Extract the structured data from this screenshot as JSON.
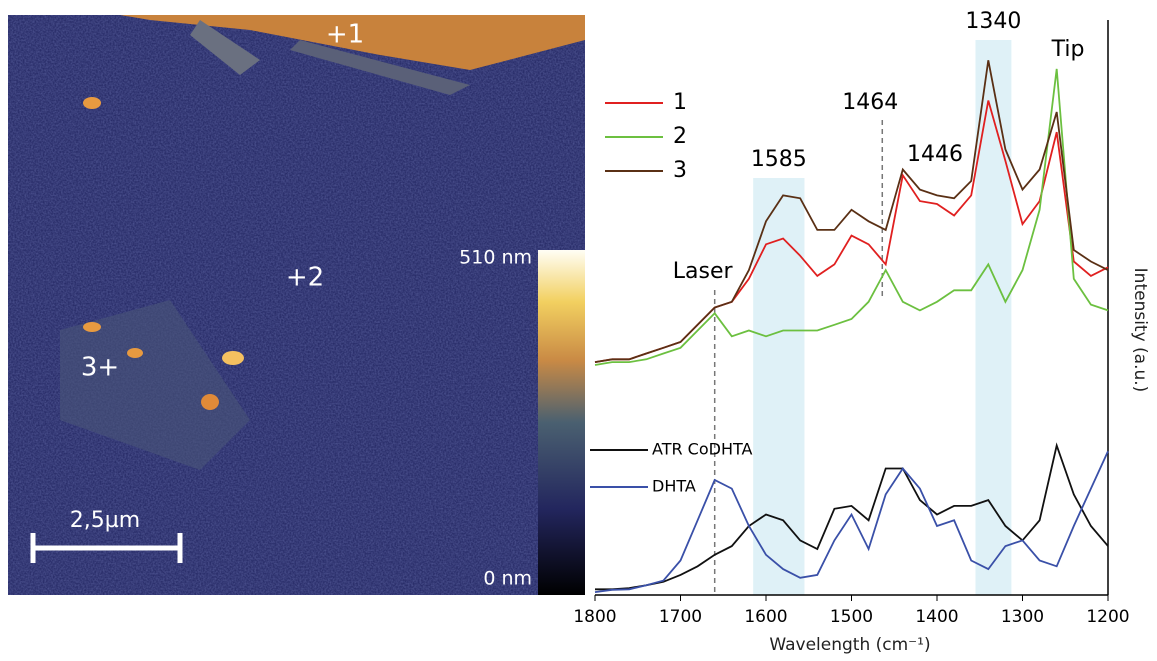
{
  "image": {
    "markers": [
      "+1",
      "+2",
      "3+"
    ],
    "scale_bar": "2,5µm",
    "colorbar": {
      "max_label": "510 nm",
      "min_label": "0 nm"
    }
  },
  "chart_data": {
    "type": "line",
    "xlabel": "Wavelength (cm⁻¹)",
    "ylabel": "Intensity (a.u.)",
    "x": [
      1800,
      1780,
      1760,
      1740,
      1720,
      1700,
      1680,
      1660,
      1640,
      1620,
      1600,
      1580,
      1560,
      1540,
      1520,
      1500,
      1480,
      1460,
      1440,
      1420,
      1400,
      1380,
      1360,
      1340,
      1320,
      1300,
      1280,
      1260,
      1240,
      1220,
      1200
    ],
    "xlim": [
      1800,
      1200
    ],
    "xticks": [
      1800,
      1700,
      1600,
      1500,
      1400,
      1300,
      1200
    ],
    "ylim": [
      0,
      100
    ],
    "series": [
      {
        "name": "1",
        "color": "#e02020",
        "values": [
          40.5,
          41,
          41,
          42,
          43,
          44,
          47,
          50,
          51,
          55,
          61,
          62,
          59,
          55.5,
          57.5,
          62.5,
          61,
          57.5,
          73,
          68.5,
          68,
          66,
          69.5,
          86,
          75.5,
          64.5,
          68.5,
          80.5,
          58,
          55.5,
          57
        ]
      },
      {
        "name": "2",
        "color": "#6cc040",
        "values": [
          40,
          40.5,
          40.5,
          41,
          42,
          43,
          46,
          49,
          45,
          46,
          45,
          46,
          46,
          46,
          47,
          48,
          51,
          56.5,
          51,
          49.5,
          51,
          53,
          53,
          57.5,
          51,
          56.5,
          67,
          91.5,
          55,
          50.5,
          49.5
        ]
      },
      {
        "name": "3",
        "color": "#5a3015",
        "values": [
          40.5,
          41,
          41,
          42,
          43,
          44,
          47,
          50,
          51,
          56.5,
          65,
          69.5,
          69,
          63.5,
          63.5,
          67,
          65,
          63.5,
          74,
          70.5,
          69.5,
          69,
          72,
          93,
          77.5,
          70.5,
          74,
          84,
          60,
          58,
          56.5
        ]
      },
      {
        "name": "ATR CoDHTA",
        "color": "#111111",
        "values": [
          1,
          1,
          1.2,
          1.7,
          2.3,
          3.5,
          5,
          7,
          8.5,
          12,
          14,
          13,
          9.5,
          8,
          15,
          15.5,
          13,
          22,
          22,
          16.5,
          14,
          15.5,
          15.5,
          16.5,
          12,
          9.5,
          13,
          26,
          17.5,
          12,
          8.5
        ]
      },
      {
        "name": "DHTA",
        "color": "#3a50a8",
        "values": [
          0.5,
          0.9,
          1,
          1.7,
          2.5,
          6,
          13,
          20,
          18.5,
          12,
          7,
          4.5,
          3,
          3.5,
          9.5,
          14,
          8,
          17.5,
          22,
          18.5,
          12,
          13,
          6,
          4.5,
          8.5,
          9.5,
          6,
          5,
          12,
          18.5,
          25
        ]
      }
    ],
    "highlights": [
      {
        "label": "1585",
        "range": [
          1615,
          1555
        ]
      },
      {
        "label": "1340",
        "range": [
          1355,
          1313
        ]
      }
    ],
    "reference_lines": [
      {
        "label": "Laser",
        "x": 1660
      },
      {
        "label": "1464",
        "x": 1464
      }
    ],
    "annotations": [
      "1446",
      "Tip"
    ]
  }
}
